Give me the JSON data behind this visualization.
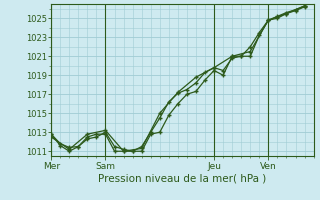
{
  "xlabel": "Pression niveau de la mer( hPa )",
  "bg_color": "#ceeaf0",
  "grid_color": "#a0ccd4",
  "line_color": "#2d5a1b",
  "ylim": [
    1010.5,
    1026.5
  ],
  "yticks": [
    1011,
    1013,
    1015,
    1017,
    1019,
    1021,
    1023,
    1025
  ],
  "day_labels": [
    "Mer",
    "Sam",
    "Jeu",
    "Ven"
  ],
  "day_positions": [
    0,
    3,
    9,
    12
  ],
  "xlim": [
    0,
    14.5
  ],
  "line1_x": [
    0,
    0.5,
    1,
    1.5,
    2,
    2.5,
    3,
    3.5,
    4,
    4.5,
    5,
    5.5,
    6,
    6.5,
    7,
    7.5,
    8,
    8.5,
    9,
    9.5,
    10,
    10.5,
    11,
    11.5,
    12,
    12.5,
    13,
    13.5,
    14
  ],
  "line1_y": [
    1012.8,
    1011.6,
    1011.0,
    1011.5,
    1012.5,
    1012.8,
    1012.8,
    1011.0,
    1011.0,
    1011.0,
    1011.0,
    1012.8,
    1013.0,
    1014.8,
    1016.0,
    1017.0,
    1017.3,
    1018.5,
    1019.5,
    1019.0,
    1021.0,
    1021.0,
    1021.0,
    1023.2,
    1024.8,
    1025.0,
    1025.5,
    1025.8,
    1026.2
  ],
  "line2_x": [
    0,
    0.5,
    1,
    1.5,
    2,
    2.5,
    3,
    3.5,
    4,
    4.5,
    5,
    5.5,
    6,
    6.5,
    7,
    7.5,
    8,
    8.5,
    9,
    9.5,
    10,
    10.5,
    11,
    11.5,
    12,
    12.5,
    13,
    13.5,
    14
  ],
  "line2_y": [
    1012.8,
    1011.8,
    1011.4,
    1011.5,
    1012.3,
    1012.5,
    1013.0,
    1011.5,
    1011.2,
    1011.0,
    1011.5,
    1013.0,
    1014.5,
    1016.2,
    1017.1,
    1017.5,
    1018.2,
    1019.3,
    1019.8,
    1019.5,
    1020.8,
    1021.0,
    1022.0,
    1023.5,
    1024.8,
    1025.2,
    1025.6,
    1025.9,
    1026.3
  ],
  "line3_x": [
    0,
    1,
    2,
    3,
    4,
    5,
    6,
    7,
    8,
    9,
    10,
    11,
    12,
    13,
    14
  ],
  "line3_y": [
    1012.5,
    1011.2,
    1012.8,
    1013.2,
    1011.0,
    1011.3,
    1015.0,
    1017.2,
    1018.8,
    1019.8,
    1021.0,
    1021.5,
    1024.8,
    1025.5,
    1026.3
  ]
}
